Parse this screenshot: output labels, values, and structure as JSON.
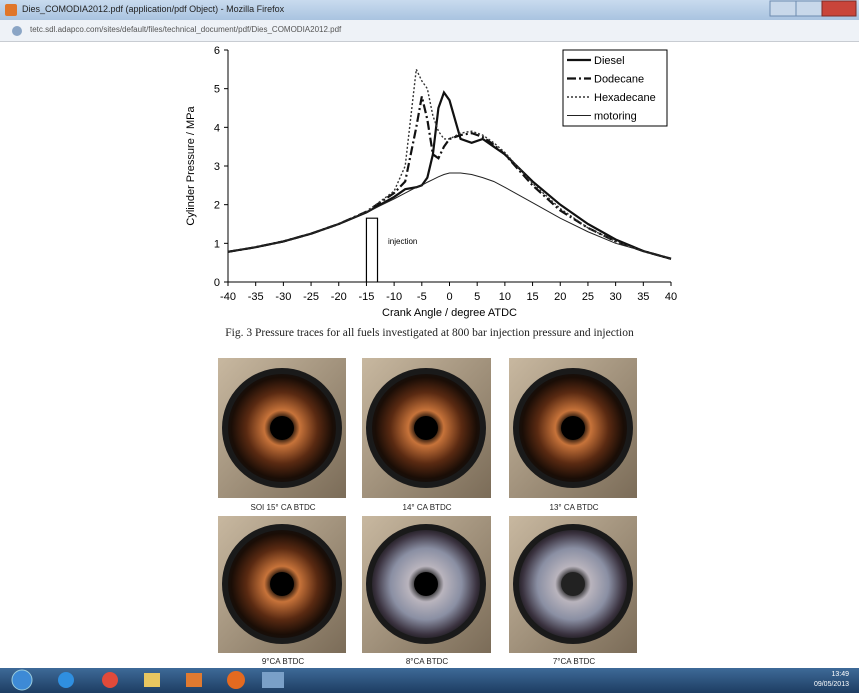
{
  "window": {
    "title": "Dies_COMODIA2012.pdf (application/pdf Object) - Mozilla Firefox",
    "url": "tetc.sdl.adapco.com/sites/default/files/technical_document/pdf/Dies_COMODIA2012.pdf"
  },
  "chart_data": {
    "type": "line",
    "xlabel": "Crank Angle / degree ATDC",
    "ylabel": "Cylinder Pressure / MPa",
    "x": [
      -40,
      -35,
      -30,
      -25,
      -20,
      -15,
      -10,
      -8,
      -6,
      -5,
      -4,
      -3,
      -2,
      -1,
      0,
      2,
      4,
      6,
      8,
      10,
      15,
      20,
      25,
      30,
      35,
      40
    ],
    "series": [
      {
        "name": "Diesel",
        "color": "#111111",
        "width": 2.2,
        "dash": "none",
        "values": [
          0.78,
          0.9,
          1.05,
          1.25,
          1.5,
          1.8,
          2.2,
          2.4,
          2.45,
          2.5,
          2.7,
          3.3,
          4.5,
          4.9,
          4.7,
          3.7,
          3.6,
          3.7,
          3.5,
          3.3,
          2.6,
          2.0,
          1.5,
          1.1,
          0.8,
          0.6
        ]
      },
      {
        "name": "Dodecane",
        "color": "#111111",
        "width": 2.2,
        "dash": "9 3 2 3",
        "values": [
          0.78,
          0.9,
          1.05,
          1.25,
          1.5,
          1.82,
          2.3,
          2.6,
          4.0,
          4.8,
          4.2,
          3.3,
          3.2,
          3.5,
          3.7,
          3.8,
          3.85,
          3.75,
          3.55,
          3.3,
          2.5,
          1.85,
          1.4,
          1.05,
          0.8,
          0.6
        ]
      },
      {
        "name": "Hexadecane",
        "color": "#333333",
        "width": 1.4,
        "dash": "2 2",
        "values": [
          0.78,
          0.9,
          1.05,
          1.25,
          1.5,
          1.82,
          2.35,
          3.0,
          5.5,
          5.2,
          5.0,
          4.3,
          3.9,
          3.7,
          3.7,
          3.85,
          3.9,
          3.8,
          3.6,
          3.35,
          2.55,
          1.9,
          1.4,
          1.05,
          0.8,
          0.6
        ]
      },
      {
        "name": "motoring",
        "color": "#222222",
        "width": 1,
        "dash": "none",
        "values": [
          0.78,
          0.9,
          1.05,
          1.25,
          1.5,
          1.8,
          2.15,
          2.3,
          2.45,
          2.5,
          2.58,
          2.65,
          2.72,
          2.78,
          2.82,
          2.82,
          2.78,
          2.7,
          2.6,
          2.45,
          2.05,
          1.65,
          1.3,
          1.0,
          0.8,
          0.62
        ]
      }
    ],
    "injection": {
      "label": "injection",
      "x": [
        -15,
        -15,
        -13,
        -13
      ],
      "values": [
        0,
        1.65,
        1.65,
        0
      ]
    },
    "xlim": [
      -40,
      40
    ],
    "ylim": [
      0,
      6
    ],
    "xticks": [
      -40,
      -35,
      -30,
      -25,
      -20,
      -15,
      -10,
      -5,
      0,
      5,
      10,
      15,
      20,
      25,
      30,
      35,
      40
    ],
    "yticks": [
      0,
      1,
      2,
      3,
      4,
      5,
      6
    ],
    "legend": "upper-right"
  },
  "caption": "Fig. 3 Pressure traces for all fuels investigated at 800 bar injection pressure and injection",
  "images": [
    {
      "label": "SOI 15° CA BTDC"
    },
    {
      "label": "14° CA BTDC"
    },
    {
      "label": "13° CA BTDC"
    },
    {
      "label": "9°CA BTDC"
    },
    {
      "label": "8°CA BTDC"
    },
    {
      "label": "7°CA BTDC"
    }
  ],
  "taskbar": {
    "time": "13:49",
    "date": "09/05/2013"
  }
}
